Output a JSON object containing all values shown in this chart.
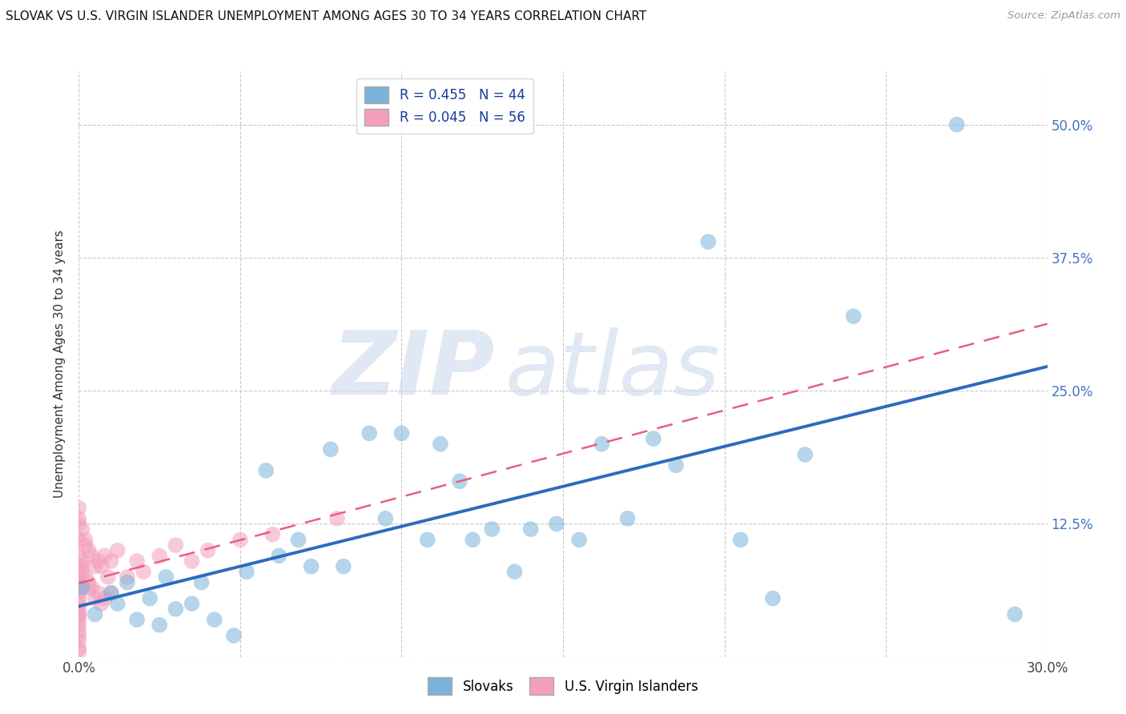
{
  "title": "SLOVAK VS U.S. VIRGIN ISLANDER UNEMPLOYMENT AMONG AGES 30 TO 34 YEARS CORRELATION CHART",
  "source": "Source: ZipAtlas.com",
  "ylabel": "Unemployment Among Ages 30 to 34 years",
  "xlim": [
    0.0,
    0.3
  ],
  "ylim": [
    0.0,
    0.55
  ],
  "slovak_R": 0.455,
  "slovak_N": 44,
  "usvi_R": 0.045,
  "usvi_N": 56,
  "slovak_color": "#7ab3d9",
  "usvi_color": "#f4a0bb",
  "slovak_line_color": "#2b6bbf",
  "usvi_line_color": "#e8607a",
  "background_color": "#ffffff",
  "grid_color": "#bbbbbb",
  "slovak_x": [
    0.001,
    0.005,
    0.01,
    0.012,
    0.015,
    0.018,
    0.022,
    0.025,
    0.027,
    0.03,
    0.035,
    0.038,
    0.042,
    0.048,
    0.052,
    0.058,
    0.062,
    0.068,
    0.072,
    0.078,
    0.082,
    0.09,
    0.095,
    0.1,
    0.108,
    0.112,
    0.118,
    0.122,
    0.128,
    0.135,
    0.14,
    0.148,
    0.155,
    0.162,
    0.17,
    0.178,
    0.185,
    0.195,
    0.205,
    0.215,
    0.225,
    0.24,
    0.272,
    0.29
  ],
  "slovak_y": [
    0.065,
    0.04,
    0.06,
    0.05,
    0.07,
    0.035,
    0.055,
    0.03,
    0.075,
    0.045,
    0.05,
    0.07,
    0.035,
    0.02,
    0.08,
    0.175,
    0.095,
    0.11,
    0.085,
    0.195,
    0.085,
    0.21,
    0.13,
    0.21,
    0.11,
    0.2,
    0.165,
    0.11,
    0.12,
    0.08,
    0.12,
    0.125,
    0.11,
    0.2,
    0.13,
    0.205,
    0.18,
    0.39,
    0.11,
    0.055,
    0.19,
    0.32,
    0.5,
    0.04
  ],
  "usvi_x": [
    0.0,
    0.0,
    0.0,
    0.0,
    0.0,
    0.0,
    0.0,
    0.0,
    0.0,
    0.0,
    0.0,
    0.0,
    0.0,
    0.0,
    0.0,
    0.0,
    0.0,
    0.0,
    0.0,
    0.0,
    0.001,
    0.001,
    0.002,
    0.002,
    0.003,
    0.003,
    0.004,
    0.004,
    0.005,
    0.005,
    0.006,
    0.006,
    0.007,
    0.007,
    0.008,
    0.008,
    0.009,
    0.01,
    0.01,
    0.012,
    0.015,
    0.018,
    0.02,
    0.025,
    0.03,
    0.035,
    0.04,
    0.05,
    0.06,
    0.08,
    0.0,
    0.0,
    0.001,
    0.002,
    0.003,
    0.001
  ],
  "usvi_y": [
    0.14,
    0.13,
    0.125,
    0.11,
    0.095,
    0.085,
    0.075,
    0.065,
    0.055,
    0.045,
    0.035,
    0.025,
    0.015,
    0.008,
    0.005,
    0.02,
    0.03,
    0.04,
    0.05,
    0.06,
    0.12,
    0.09,
    0.11,
    0.075,
    0.1,
    0.07,
    0.095,
    0.065,
    0.085,
    0.055,
    0.09,
    0.06,
    0.085,
    0.05,
    0.095,
    0.055,
    0.075,
    0.09,
    0.06,
    0.1,
    0.075,
    0.09,
    0.08,
    0.095,
    0.105,
    0.09,
    0.1,
    0.11,
    0.115,
    0.13,
    0.07,
    0.04,
    0.085,
    0.105,
    0.065,
    0.08
  ]
}
